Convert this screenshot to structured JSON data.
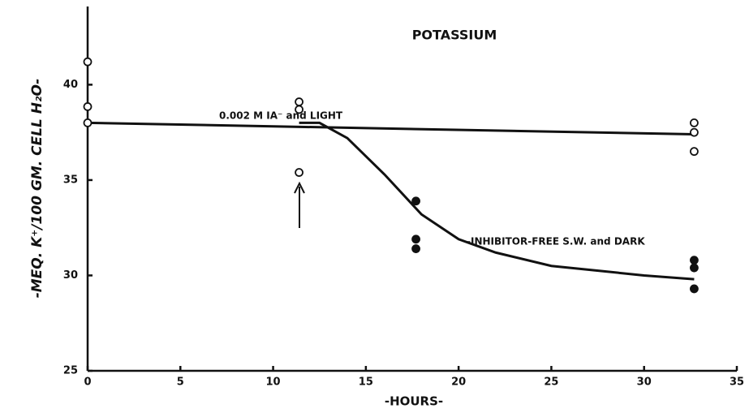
{
  "chart_data": {
    "type": "scatter",
    "title": "POTASSIUM",
    "x_label": "-HOURS-",
    "y_label": "-MEQ. K⁺/100 GM. CELL H₂O-",
    "xlim": [
      0,
      35
    ],
    "ylim": [
      25,
      44.1
    ],
    "xticks": [
      0,
      5,
      10,
      15,
      20,
      25,
      30,
      35
    ],
    "yticks": [
      25,
      30,
      35,
      40
    ],
    "series": [
      {
        "name": "0.002 M IA⁻ and LIGHT",
        "style": "line",
        "color": "#111",
        "x": [
          0,
          32.7
        ],
        "values": [
          38.0,
          37.4
        ]
      },
      {
        "name": "-INHIBITOR-FREE S.W. and DARK",
        "style": "line",
        "color": "#111",
        "x": [
          11.4,
          12.5,
          14,
          16,
          18,
          20,
          22,
          25,
          30,
          32.7
        ],
        "values": [
          38.0,
          38.0,
          37.2,
          35.3,
          33.2,
          31.9,
          31.2,
          30.5,
          30.0,
          29.8
        ]
      },
      {
        "style": "open",
        "color": "#111",
        "x": [
          0,
          0,
          0,
          11.4,
          11.4,
          11.4,
          32.7,
          32.7,
          32.7
        ],
        "values": [
          41.2,
          38.85,
          38.0,
          39.1,
          38.7,
          35.4,
          38.0,
          37.5,
          36.5
        ]
      },
      {
        "style": "filled",
        "color": "#111",
        "x": [
          17.7,
          17.7,
          17.7,
          32.7,
          32.7,
          32.7
        ],
        "values": [
          33.9,
          31.9,
          31.4,
          30.8,
          30.4,
          29.3
        ]
      }
    ]
  }
}
